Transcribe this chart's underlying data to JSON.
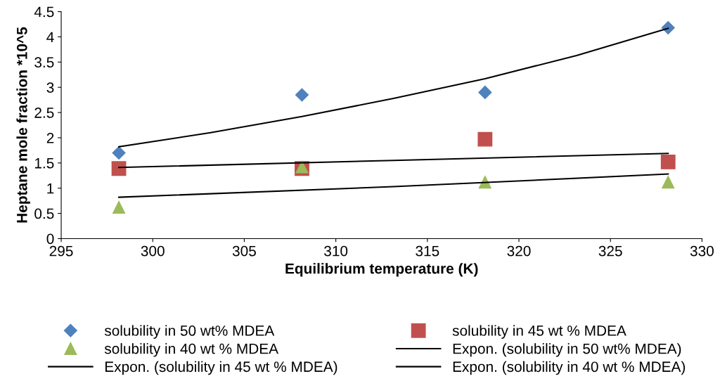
{
  "chart_data": {
    "type": "scatter",
    "xlabel": "Equilibrium temperature (K)",
    "ylabel": "Heptane mole fraction *10^5",
    "xlim": [
      295,
      330
    ],
    "xticks": [
      295,
      300,
      305,
      310,
      315,
      320,
      325,
      330
    ],
    "ylim": [
      0,
      4.5
    ],
    "yticks": [
      0,
      0.5,
      1,
      1.5,
      2,
      2.5,
      3,
      3.5,
      4,
      4.5
    ],
    "grid": false,
    "legend": "bottom",
    "series": [
      {
        "name": "solubility in 50 wt% MDEA",
        "marker": "diamond",
        "color": "#4f81bd",
        "x": [
          298.15,
          308.15,
          318.15,
          328.15
        ],
        "values": [
          1.7,
          2.85,
          2.9,
          4.18
        ]
      },
      {
        "name": "solubility in 45 wt % MDEA",
        "marker": "square",
        "color": "#c0504d",
        "x": [
          298.15,
          308.15,
          318.15,
          328.15
        ],
        "values": [
          1.39,
          1.39,
          1.97,
          1.52
        ]
      },
      {
        "name": "solubility in 40 wt % MDEA",
        "marker": "triangle",
        "color": "#9bbb59",
        "x": [
          298.15,
          308.15,
          318.15,
          328.15
        ],
        "values": [
          0.62,
          1.42,
          1.12,
          1.12
        ]
      },
      {
        "name": "Expon. (solubility in 50 wt% MDEA)",
        "type": "line",
        "marker": "none",
        "color": "#000000",
        "x": [
          298.15,
          303.15,
          308.15,
          313.15,
          318.15,
          323.15,
          328.15
        ],
        "values": [
          1.82,
          2.1,
          2.42,
          2.78,
          3.17,
          3.63,
          4.17
        ]
      },
      {
        "name": "Expon. (solubility in 45 wt % MDEA)",
        "type": "line",
        "marker": "none",
        "color": "#000000",
        "x": [
          298.15,
          313.15,
          328.15
        ],
        "values": [
          1.41,
          1.55,
          1.69
        ]
      },
      {
        "name": "Expon. (solubility in 40 wt % MDEA)",
        "type": "line",
        "marker": "none",
        "color": "#000000",
        "x": [
          298.15,
          313.15,
          328.15
        ],
        "values": [
          0.82,
          1.03,
          1.28
        ]
      }
    ]
  }
}
